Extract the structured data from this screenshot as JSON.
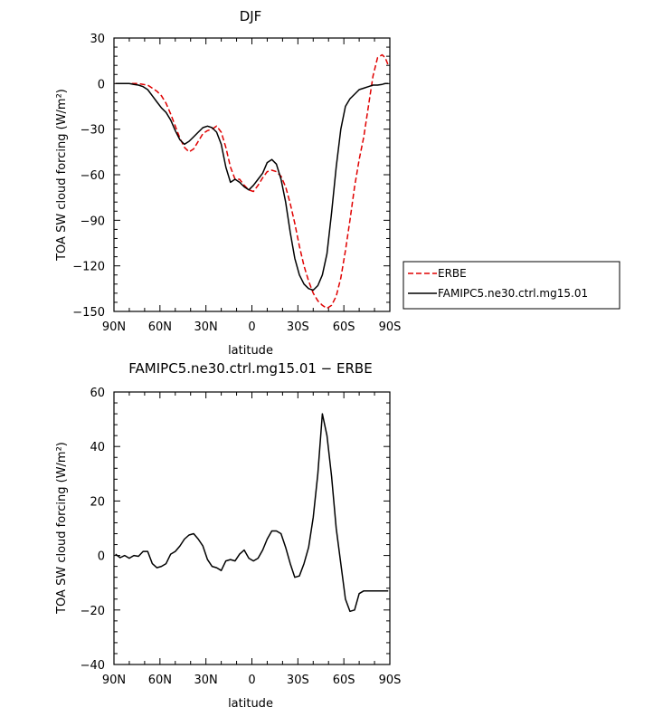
{
  "chart_data": [
    {
      "type": "line",
      "title": "DJF",
      "xlabel": "latitude",
      "ylabel": "TOA SW cloud forcing (W/m²)",
      "xlim": [
        90,
        -90
      ],
      "ylim": [
        -150,
        30
      ],
      "xtick_values": [
        90,
        60,
        30,
        0,
        -30,
        -60,
        -90
      ],
      "xtick_labels": [
        "90N",
        "60N",
        "30N",
        "0",
        "30S",
        "60S",
        "90S"
      ],
      "ytick_values": [
        30,
        0,
        -30,
        -60,
        -90,
        -120,
        -150
      ],
      "ytick_labels": [
        "30",
        "0",
        "−30",
        "−60",
        "−90",
        "−120",
        "−150"
      ],
      "legend_position": "right",
      "series": [
        {
          "name": "ERBE",
          "color": "#e00000",
          "dash": "dashed",
          "x": [
            89,
            86,
            83,
            80,
            77,
            74,
            71,
            68,
            65,
            62,
            59,
            56,
            53,
            50,
            47,
            44,
            41,
            38,
            35,
            32,
            29,
            26,
            23,
            20,
            17,
            14,
            11,
            8,
            5,
            2,
            -1,
            -4,
            -7,
            -10,
            -13,
            -16,
            -19,
            -22,
            -25,
            -28,
            -31,
            -34,
            -37,
            -40,
            -43,
            -46,
            -49,
            -52,
            -55,
            -58,
            -61,
            -64,
            -67,
            -70,
            -73,
            -76,
            -79,
            -82,
            -85,
            -87,
            -89
          ],
          "values": [
            0,
            0,
            0,
            0,
            0,
            0,
            -0.5,
            -1,
            -3,
            -5,
            -8,
            -13,
            -20,
            -28,
            -36,
            -42,
            -45,
            -43,
            -38,
            -33,
            -31,
            -30,
            -28,
            -32,
            -42,
            -55,
            -63,
            -63,
            -67,
            -70,
            -71,
            -67,
            -62,
            -58,
            -57,
            -58,
            -61,
            -68,
            -79,
            -92,
            -107,
            -120,
            -130,
            -138,
            -143,
            -146,
            -148,
            -146,
            -140,
            -128,
            -110,
            -90,
            -68,
            -50,
            -35,
            -15,
            5,
            17,
            19,
            17,
            12
          ]
        },
        {
          "name": "FAMIPC5.ne30.ctrl.mg15.01",
          "color": "#000000",
          "dash": "solid",
          "x": [
            89,
            86,
            83,
            80,
            77,
            74,
            71,
            68,
            65,
            62,
            59,
            56,
            53,
            50,
            47,
            44,
            41,
            38,
            35,
            32,
            29,
            26,
            23,
            20,
            17,
            14,
            11,
            8,
            5,
            2,
            -1,
            -4,
            -7,
            -10,
            -13,
            -16,
            -19,
            -22,
            -25,
            -28,
            -31,
            -34,
            -37,
            -40,
            -43,
            -46,
            -49,
            -52,
            -55,
            -58,
            -61,
            -64,
            -67,
            -70,
            -73,
            -76,
            -79,
            -82,
            -85,
            -87,
            -89
          ],
          "values": [
            0,
            0,
            0,
            0,
            -0.5,
            -1,
            -2,
            -4,
            -8,
            -12,
            -16,
            -19,
            -24,
            -31,
            -37,
            -40,
            -38,
            -35,
            -32,
            -29,
            -28,
            -29,
            -32,
            -40,
            -55,
            -65,
            -63,
            -65,
            -68,
            -70,
            -67,
            -63,
            -59,
            -52,
            -50,
            -53,
            -63,
            -78,
            -98,
            -115,
            -126,
            -132,
            -135,
            -136,
            -133,
            -126,
            -112,
            -85,
            -55,
            -30,
            -15,
            -10,
            -7,
            -4,
            -3,
            -2,
            -1,
            -1,
            -0.5,
            0,
            0
          ]
        }
      ]
    },
    {
      "type": "line",
      "title": "FAMIPC5.ne30.ctrl.mg15.01  −  ERBE",
      "xlabel": "latitude",
      "ylabel": "TOA SW cloud forcing (W/m²)",
      "xlim": [
        90,
        -90
      ],
      "ylim": [
        -40,
        60
      ],
      "xtick_values": [
        90,
        60,
        30,
        0,
        -30,
        -60,
        -90
      ],
      "xtick_labels": [
        "90N",
        "60N",
        "30N",
        "0",
        "30S",
        "60S",
        "90S"
      ],
      "ytick_values": [
        60,
        40,
        20,
        0,
        -20,
        -40
      ],
      "ytick_labels": [
        "60",
        "40",
        "20",
        "0",
        "−20",
        "−40"
      ],
      "series": [
        {
          "color": "#000000",
          "dash": "solid",
          "x": [
            89,
            86,
            83,
            80,
            77,
            74,
            71,
            68,
            65,
            62,
            59,
            56,
            53,
            50,
            47,
            44,
            41,
            38,
            35,
            32,
            29,
            26,
            23,
            20,
            17,
            14,
            11,
            8,
            5,
            2,
            -1,
            -4,
            -7,
            -10,
            -13,
            -16,
            -19,
            -22,
            -25,
            -28,
            -31,
            -34,
            -37,
            -40,
            -43,
            -46,
            -49,
            -52,
            -55,
            -58,
            -61,
            -64,
            -67,
            -70,
            -73,
            -76,
            -79,
            -82,
            -85,
            -87,
            -89
          ],
          "values": [
            0.5,
            -0.8,
            0,
            -1,
            0,
            -0.3,
            1.5,
            1.5,
            -3,
            -4.5,
            -4,
            -3,
            0.5,
            1.5,
            3.5,
            6,
            7.5,
            8,
            6,
            3.5,
            -1.5,
            -4,
            -4.5,
            -5.5,
            -2,
            -1.5,
            -2,
            0.5,
            2,
            -1,
            -2,
            -1,
            2,
            6,
            9,
            9,
            8,
            3,
            -3,
            -8,
            -7.5,
            -3,
            3,
            14,
            30,
            52,
            44,
            29,
            10,
            -3,
            -16,
            -20.5,
            -20,
            -14,
            -13,
            -13,
            -13,
            -13,
            -13,
            -13,
            -13
          ]
        }
      ]
    }
  ]
}
